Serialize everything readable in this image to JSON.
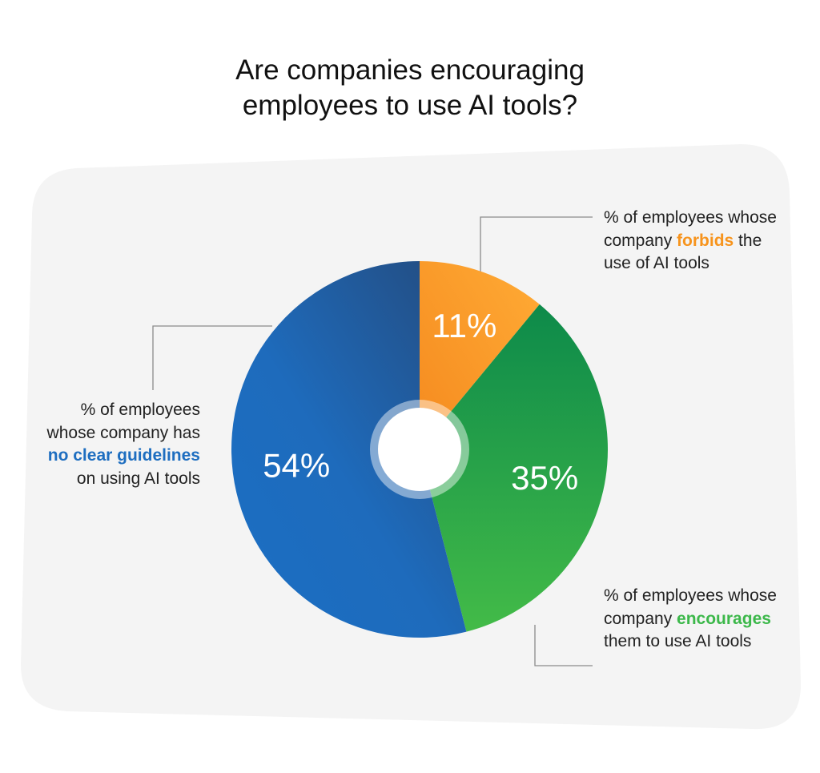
{
  "title_lines": [
    "Are companies encouraging",
    "employees to use AI tools?"
  ],
  "chart_data": {
    "type": "pie",
    "title": "Are companies encouraging employees to use AI tools?",
    "slices": [
      {
        "label": "11%",
        "value": 11,
        "color": "#f7941d",
        "color2": "#ffa733"
      },
      {
        "label": "35%",
        "value": 35,
        "color": "#0f8f4c",
        "color2": "#3cb84a"
      },
      {
        "label": "54%",
        "value": 54,
        "color": "#1e6ec0",
        "color2": "#234f86"
      }
    ],
    "donut": true
  },
  "callouts": {
    "forbid": {
      "pre": "% of employees whose company ",
      "highlight": "forbids",
      "post": " the use of AI tools",
      "color": "#f7941d"
    },
    "encourage": {
      "pre": "% of employees whose company ",
      "highlight": "encourages",
      "post": " them to use AI tools",
      "color": "#3cb84a"
    },
    "unclear": {
      "pre": "% of employees whose company has ",
      "highlight": "no clear guidelines",
      "post": " on using AI tools",
      "color": "#1e6ec0"
    }
  }
}
